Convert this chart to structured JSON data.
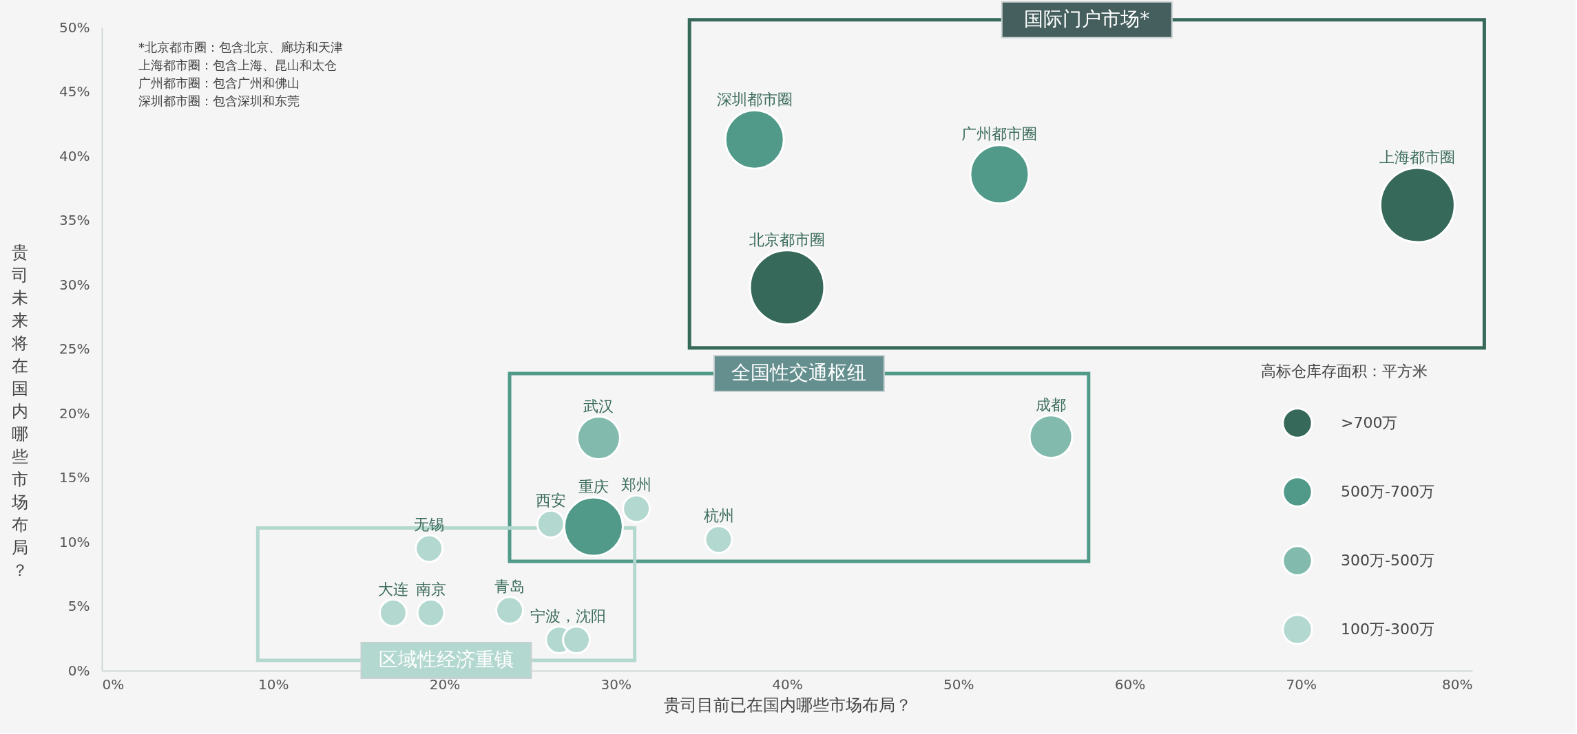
{
  "chart_data": {
    "type": "bubble",
    "xlabel": "贵司目前已在国内哪些市场布局？",
    "ylabel": "贵司未来将在国内哪些市场布局？",
    "legend_title": "高标仓库存面积：平方米",
    "legend": "bottom right",
    "grid": false,
    "xlim": [
      0,
      80
    ],
    "ylim": [
      0,
      50
    ],
    "xticks": [
      {
        "value": 0,
        "label": "0%"
      },
      {
        "value": 10,
        "label": "10%"
      },
      {
        "value": 20,
        "label": "20%"
      },
      {
        "value": 30,
        "label": "30%"
      },
      {
        "value": 40,
        "label": "40%"
      },
      {
        "value": 50,
        "label": "50%"
      },
      {
        "value": 60,
        "label": "60%"
      },
      {
        "value": 70,
        "label": "70%"
      },
      {
        "value": 80,
        "label": "80%"
      }
    ],
    "yticks": [
      {
        "value": 0,
        "label": "0%"
      },
      {
        "value": 5,
        "label": "5%"
      },
      {
        "value": 10,
        "label": "10%"
      },
      {
        "value": 15,
        "label": "15%"
      },
      {
        "value": 20,
        "label": "20%"
      },
      {
        "value": 25,
        "label": "25%"
      },
      {
        "value": 30,
        "label": "30%"
      },
      {
        "value": 35,
        "label": "35%"
      },
      {
        "value": 40,
        "label": "40%"
      },
      {
        "value": 45,
        "label": "45%"
      },
      {
        "value": 50,
        "label": "50%"
      }
    ],
    "series": [
      {
        "name": ">700万",
        "color": "#36695a",
        "x": [
          76.8,
          40.0
        ],
        "values": [
          36.2,
          29.8
        ],
        "sizes": [
          1,
          1
        ]
      },
      {
        "name": "500万-700万",
        "color": "#519a89",
        "x": [
          38.1,
          52.4,
          28.7
        ],
        "values": [
          41.3,
          38.6,
          11.2
        ],
        "sizes": [
          0.62,
          0.62,
          0.62
        ]
      },
      {
        "name": "300万-500万",
        "color": "#82bbad",
        "x": [
          29.0,
          55.4
        ],
        "values": [
          18.1,
          18.2
        ],
        "sizes": [
          0.33,
          0.33
        ]
      },
      {
        "name": "100万-300万",
        "color": "#b3d8cf",
        "x": [
          26.2,
          31.2,
          36.0,
          19.1,
          17.0,
          19.2,
          23.8,
          26.7,
          27.7
        ],
        "values": [
          11.4,
          12.6,
          10.2,
          9.5,
          4.5,
          4.5,
          4.7,
          2.4,
          2.4
        ],
        "sizes": [
          0.13,
          0.13,
          0.13,
          0.13,
          0.13,
          0.13,
          0.13,
          0.13,
          0.13
        ]
      }
    ],
    "annotations": [
      "*北京都市圈：包含北京、廊坊和天津",
      "上海都市圈：包含上海、昆山和太仓",
      "广州都市圈：包含广州和佛山",
      "深圳都市圈：包含深圳和东莞",
      "国际门户市场*",
      "全国性交通枢纽",
      "区域性经济重镇",
      {
        "text": "上海都市圈",
        "x": 76.8,
        "y": 36.2
      },
      {
        "text": "北京都市圈",
        "x": 40.0,
        "y": 29.8
      },
      {
        "text": "深圳都市圈",
        "x": 38.1,
        "y": 41.3
      },
      {
        "text": "广州都市圈",
        "x": 52.4,
        "y": 38.6
      },
      {
        "text": "重庆",
        "x": 28.7,
        "y": 11.2
      },
      {
        "text": "武汉",
        "x": 29.0,
        "y": 18.1
      },
      {
        "text": "成都",
        "x": 55.4,
        "y": 18.2
      },
      {
        "text": "西安",
        "x": 26.2,
        "y": 11.4
      },
      {
        "text": "郑州",
        "x": 31.2,
        "y": 12.6
      },
      {
        "text": "杭州",
        "x": 36.0,
        "y": 10.2
      },
      {
        "text": "无锡",
        "x": 19.1,
        "y": 9.5
      },
      {
        "text": "大连",
        "x": 17.0,
        "y": 4.5
      },
      {
        "text": "南京",
        "x": 19.2,
        "y": 4.5
      },
      {
        "text": "青岛",
        "x": 23.8,
        "y": 4.7
      },
      {
        "text": "宁波，沈阳",
        "x": 27.2,
        "y": 2.4
      }
    ]
  }
}
